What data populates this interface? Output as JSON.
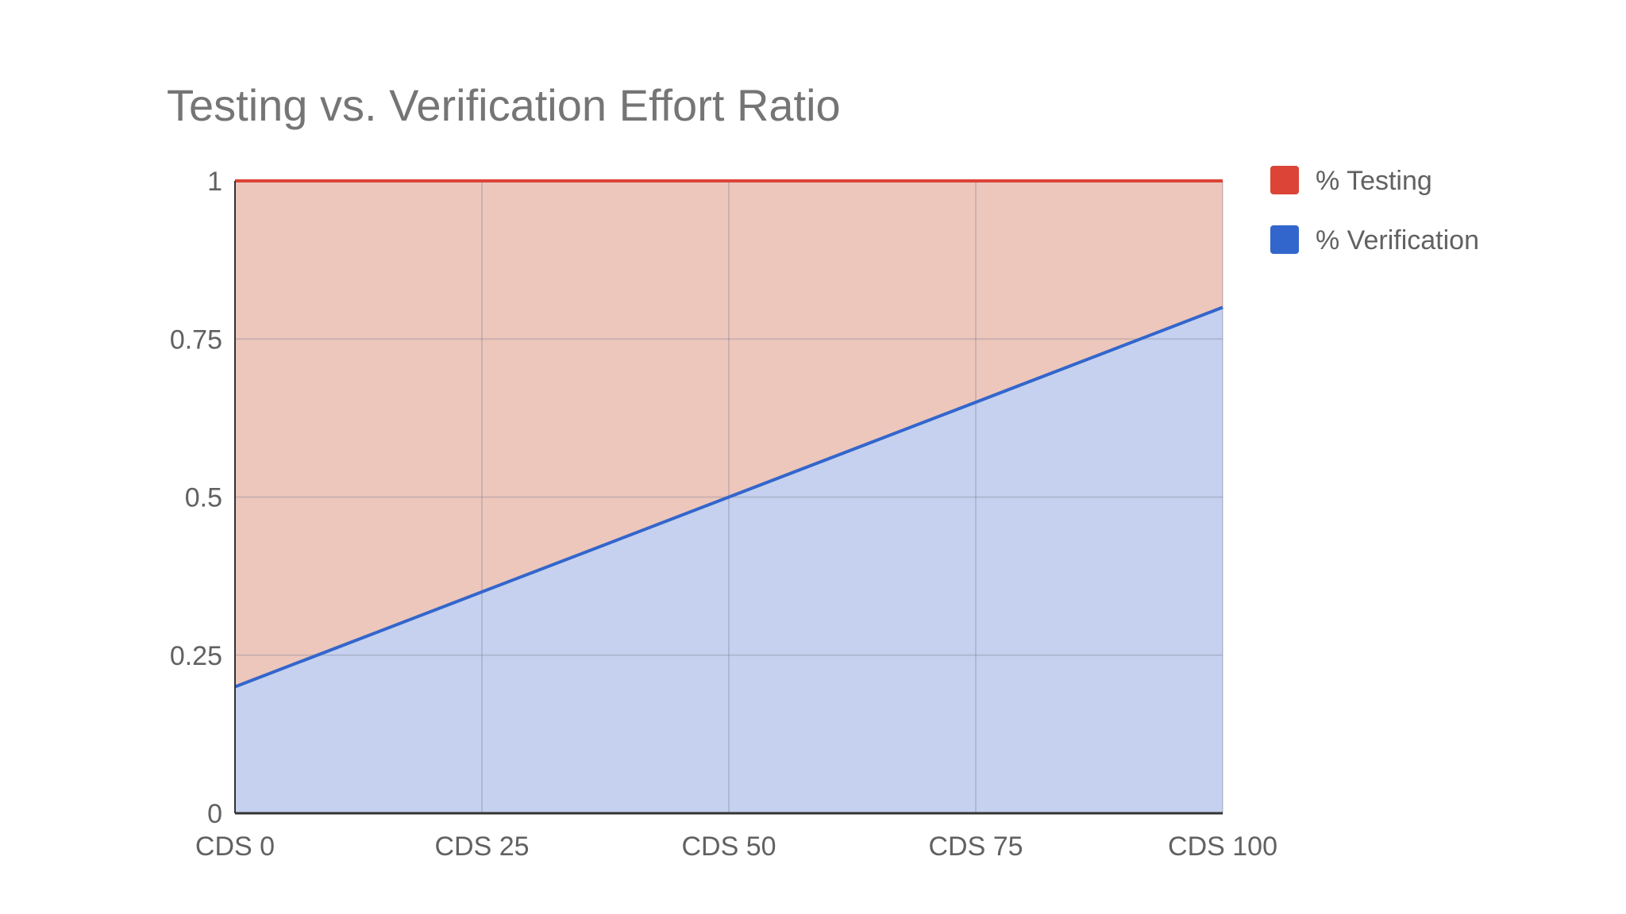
{
  "chart_data": {
    "type": "area",
    "stacked": true,
    "title": "Testing vs. Verification Effort Ratio",
    "xlabel": "",
    "ylabel": "",
    "categories": [
      "CDS 0",
      "CDS 25",
      "CDS 50",
      "CDS 75",
      "CDS 100"
    ],
    "series": [
      {
        "name": "% Testing",
        "values": [
          0.8,
          0.65,
          0.5,
          0.35,
          0.2
        ],
        "color": "#db4437",
        "fill": "#edc7bc"
      },
      {
        "name": "% Verification",
        "values": [
          0.2,
          0.35,
          0.5,
          0.65,
          0.8
        ],
        "color": "#3366cc",
        "fill": "#c5d1ee"
      }
    ],
    "ylim": [
      0,
      1
    ],
    "y_ticks": [
      0,
      0.25,
      0.5,
      0.75,
      1
    ],
    "y_tick_labels": [
      "0",
      "0.25",
      "0.5",
      "0.75",
      "1"
    ],
    "grid": true,
    "legend_position": "right"
  }
}
